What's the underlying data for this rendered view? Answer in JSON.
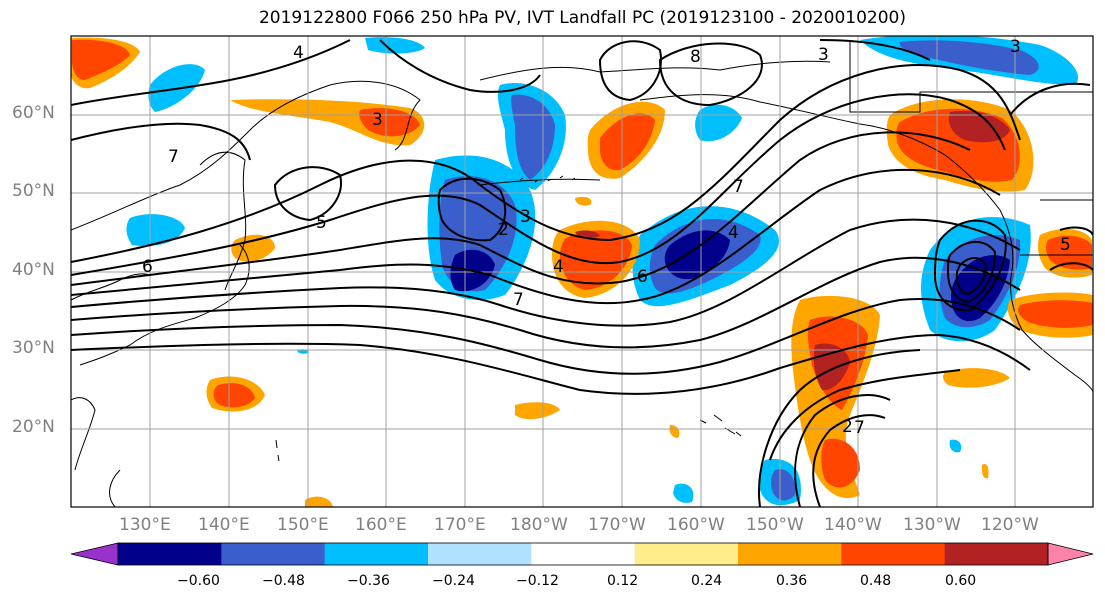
{
  "title": "2019122800 F066 250 hPa PV, IVT Landfall PC (2019123100 - 2020010200)",
  "lat_labels": [
    "60°N",
    "50°N",
    "40°N",
    "30°N",
    "20°N"
  ],
  "lon_labels": [
    "130°E",
    "140°E",
    "150°E",
    "160°E",
    "170°E",
    "180°W",
    "170°W",
    "160°W",
    "150°W",
    "140°W",
    "130°W",
    "120°W"
  ],
  "contour_labels": [
    "4",
    "3",
    "7",
    "5",
    "2",
    "3",
    "4",
    "7",
    "6",
    "6",
    "7",
    "4",
    "3",
    "8",
    "5",
    "2",
    "7",
    "3"
  ],
  "colorbar": {
    "tick_labels": [
      "−0.60",
      "−0.48",
      "−0.36",
      "−0.24",
      "−0.12",
      "0.12",
      "0.24",
      "0.36",
      "0.48",
      "0.60"
    ],
    "colors": [
      "#9932cc",
      "#00008b",
      "#3a5fcd",
      "#00bfff",
      "#b0e2ff",
      "#ffffff",
      "#ffec8b",
      "#ffa500",
      "#ff4500",
      "#b22222",
      "#ff82ab"
    ]
  },
  "colors": {
    "neg_strong": "#00008b",
    "neg_mid": "#3a5fcd",
    "neg_light": "#00bfff",
    "neg_pale": "#b0e2ff",
    "pos_pale": "#ffec8b",
    "pos_light": "#ffa500",
    "pos_mid": "#ff4500",
    "pos_strong": "#b22222",
    "grid": "#a0a0a0",
    "coast": "#000000"
  }
}
